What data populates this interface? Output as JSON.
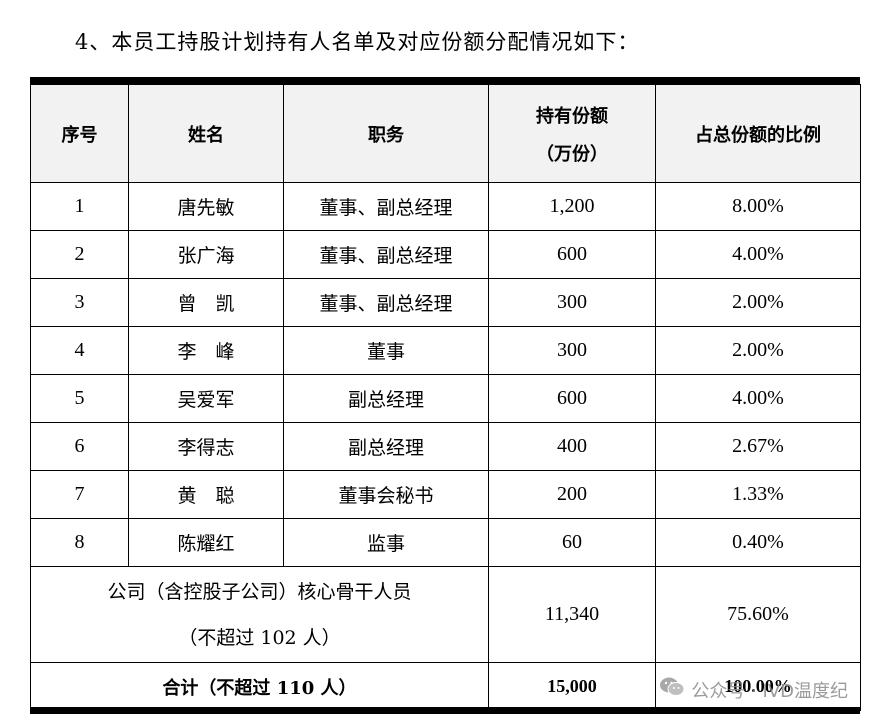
{
  "heading": "4、本员工持股计划持有人名单及对应份额分配情况如下：",
  "table": {
    "headers": {
      "index": "序号",
      "name": "姓名",
      "position": "职务",
      "shares_line1": "持有份额",
      "shares_line2": "（万份）",
      "ratio": "占总份额的比例"
    },
    "rows": [
      {
        "index": "1",
        "name": "唐先敏",
        "position": "董事、副总经理",
        "shares": "1,200",
        "ratio": "8.00%"
      },
      {
        "index": "2",
        "name": "张广海",
        "position": "董事、副总经理",
        "shares": "600",
        "ratio": "4.00%"
      },
      {
        "index": "3",
        "name": "曾　凯",
        "position": "董事、副总经理",
        "shares": "300",
        "ratio": "2.00%"
      },
      {
        "index": "4",
        "name": "李　峰",
        "position": "董事",
        "shares": "300",
        "ratio": "2.00%"
      },
      {
        "index": "5",
        "name": "吴爱军",
        "position": "副总经理",
        "shares": "600",
        "ratio": "4.00%"
      },
      {
        "index": "6",
        "name": "李得志",
        "position": "副总经理",
        "shares": "400",
        "ratio": "2.67%"
      },
      {
        "index": "7",
        "name": "黄　聪",
        "position": "董事会秘书",
        "shares": "200",
        "ratio": "1.33%"
      },
      {
        "index": "8",
        "name": "陈耀红",
        "position": "监事",
        "shares": "60",
        "ratio": "0.40%"
      }
    ],
    "core_staff": {
      "label_line1": "公司（含控股子公司）核心骨干人员",
      "label_line2": "（不超过 102 人）",
      "shares": "11,340",
      "ratio": "75.60%"
    },
    "total": {
      "label": "合计（不超过 110 人）",
      "shares": "15,000",
      "ratio": "100.00%"
    }
  },
  "watermark": {
    "icon": "wechat-icon",
    "text": "公众号 · IVD温度纪"
  }
}
